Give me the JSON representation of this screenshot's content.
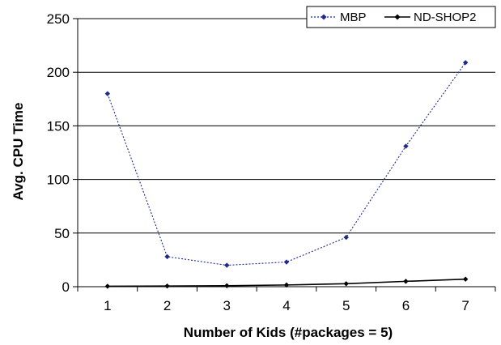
{
  "chart_data": {
    "type": "line",
    "x": [
      1,
      2,
      3,
      4,
      5,
      6,
      7
    ],
    "xlabel": "Number of Kids (#packages = 5)",
    "ylabel": "Avg. CPU Time",
    "ylim": [
      0,
      250
    ],
    "yticks": [
      0,
      50,
      100,
      150,
      200,
      250
    ],
    "grid": "horizontal",
    "legend": "top-right",
    "series": [
      {
        "name": "MBP",
        "values": [
          180,
          28,
          20,
          23,
          46,
          131,
          209
        ],
        "color": "#1f2a8a",
        "style": "dotted-diamond"
      },
      {
        "name": "ND-SHOP2",
        "values": [
          0.4,
          0.6,
          0.9,
          1.6,
          2.8,
          5.0,
          7.0
        ],
        "color": "#000000",
        "style": "solid-diamond"
      }
    ]
  }
}
